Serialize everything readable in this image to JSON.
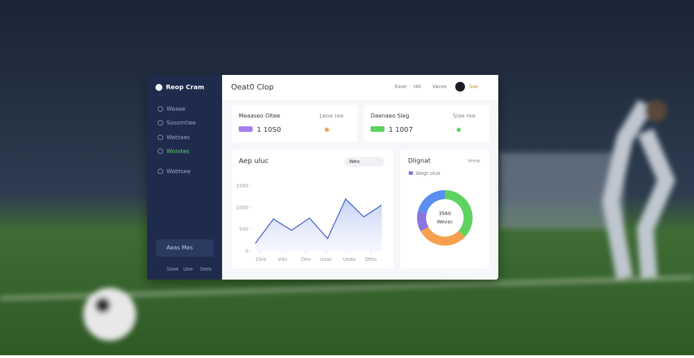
{
  "app": {
    "title": "Reop Cram",
    "nav": [
      "Weaae",
      "Sosomtiee",
      "Wetsaes",
      "Wosstes",
      "Wabtsee"
    ],
    "footer": "Aeas Mes",
    "footer_links": [
      "Sooe",
      "Ueo",
      "Sees"
    ]
  },
  "header": {
    "title": "Oeat0 Clop",
    "links": [
      "Eaxe",
      "I40",
      "Vaces"
    ],
    "user": "Sae"
  },
  "stats": [
    {
      "label": "Meaaseo Oltee",
      "value": "1 10S0",
      "trend": "Leoe ree",
      "color": "#a77cf0",
      "trend_color": "#f6a04d"
    },
    {
      "label": "Daenaeo Sleg",
      "value": "1 1007",
      "trend": "Slae ree",
      "color": "#5fd35f",
      "trend_color": "#5fd35f"
    }
  ],
  "chart_data": [
    {
      "type": "line",
      "title": "Aep uluc",
      "toggle": "Weo",
      "color": "#4f6fc7",
      "x": [
        0,
        1,
        2,
        3,
        4,
        5,
        6,
        7
      ],
      "values": [
        180,
        740,
        480,
        760,
        290,
        1200,
        790,
        1060
      ],
      "xlim": [
        0,
        7
      ],
      "ylim": [
        0,
        1600
      ],
      "yticks": [
        0,
        500,
        1000,
        1500
      ],
      "xticks": [
        {
          "value": 0.3,
          "label": "1Sto"
        },
        {
          "value": 1.5,
          "label": "Vdo"
        },
        {
          "value": 2.8,
          "label": "Oeo"
        },
        {
          "value": 3.9,
          "label": "Uaas"
        },
        {
          "value": 5.2,
          "label": "Uedo"
        },
        {
          "value": 6.4,
          "label": "Otho"
        }
      ]
    },
    {
      "type": "pie",
      "title": "Dlignat",
      "action": "Veew",
      "center": "3560",
      "center_sub": "Wevac",
      "categories": [
        "Ibegr uluo",
        null,
        null,
        null
      ],
      "values": [
        37,
        30,
        12,
        21
      ],
      "colors": [
        "#5fd35f",
        "#f6a04d",
        "#8a74e0",
        "#5b8ef0"
      ],
      "legend_color": "#8a74e0"
    }
  ]
}
